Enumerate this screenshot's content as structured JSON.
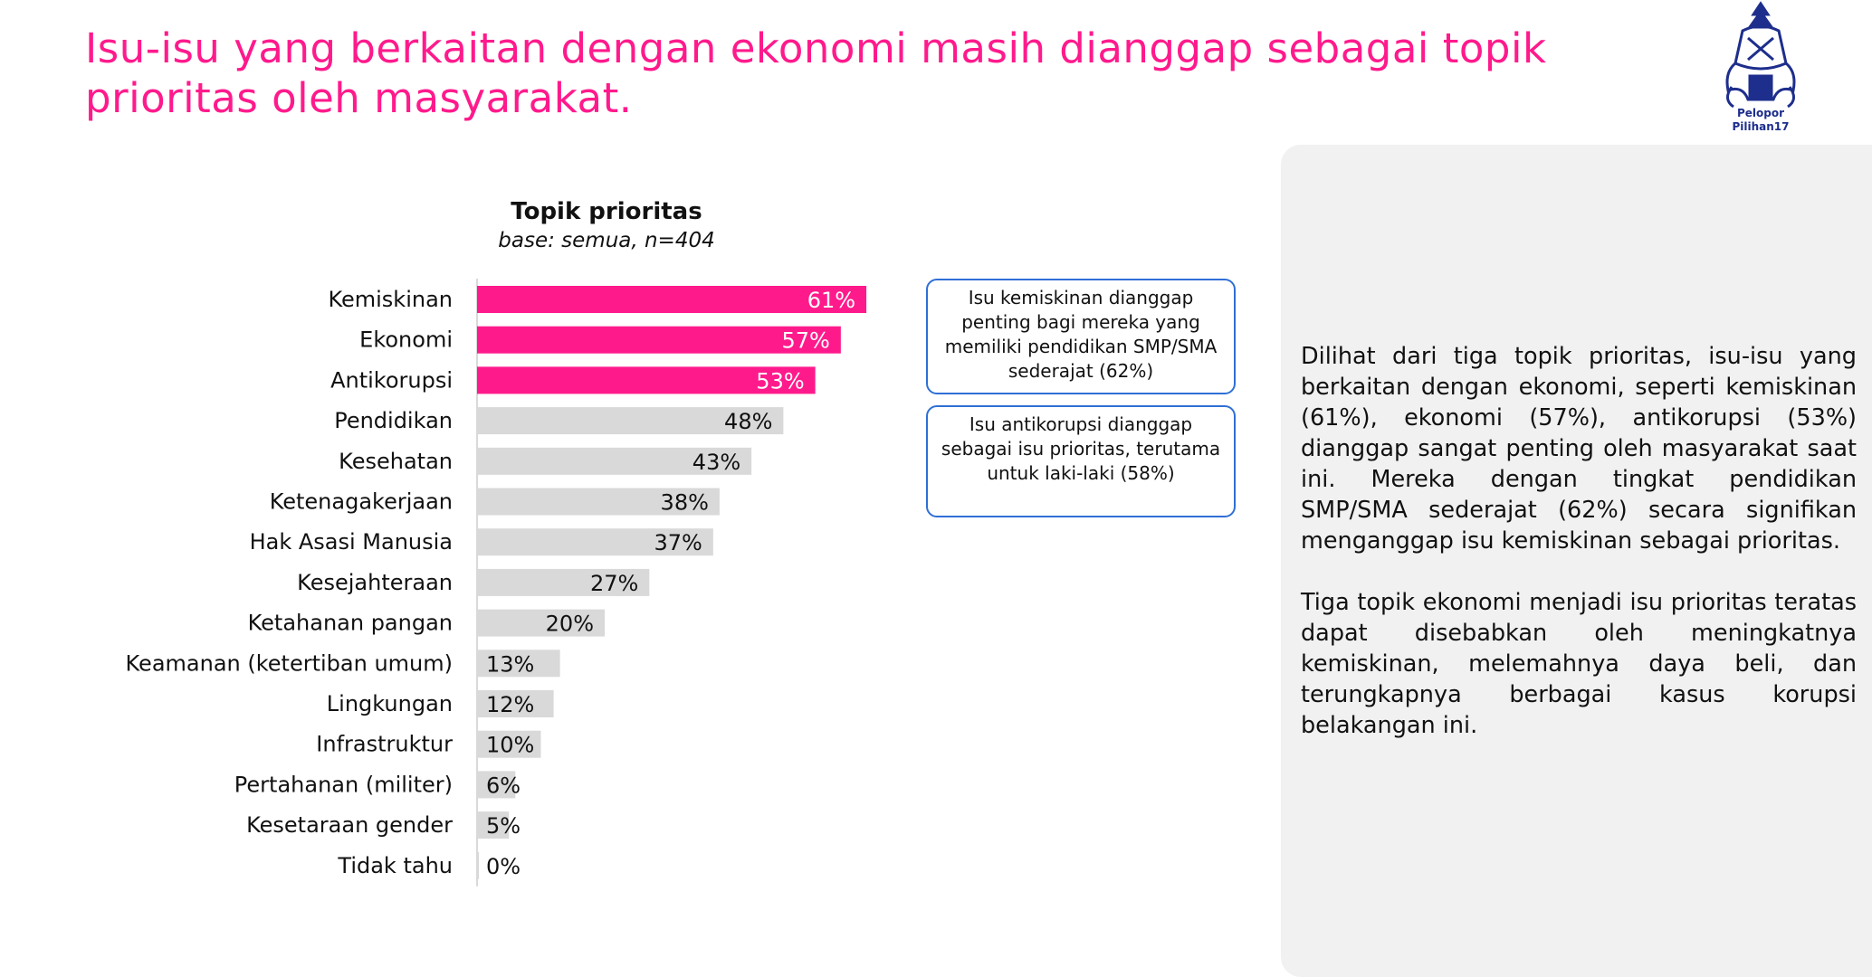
{
  "title": "Isu-isu yang berkaitan dengan ekonomi masih dianggap sebagai topik prioritas oleh masyarakat.",
  "logo": {
    "line1": "Pelopor",
    "line2": "Pilihan17",
    "color": "#1d2e8c"
  },
  "colors": {
    "highlight": "#ff1a8c",
    "default_bar": "#d9d9d9",
    "callout_border": "#2f6fd6"
  },
  "callouts": [
    "Isu kemiskinan dianggap penting bagi mereka yang memiliki pendidikan SMP/SMA sederajat (62%)",
    "Isu antikorupsi dianggap sebagai isu prioritas, terutama untuk laki-laki (58%)"
  ],
  "panel": {
    "paragraph1": "Dilihat dari tiga topik prioritas, isu-isu yang berkaitan dengan ekonomi, seperti kemiskinan (61%), ekonomi (57%), antikorupsi (53%) dianggap sangat penting oleh masyarakat saat ini. Mereka dengan tingkat pendidikan SMP/SMA sederajat (62%) secara signifikan menganggap isu kemiskinan sebagai prioritas.",
    "paragraph2": "Tiga topik ekonomi menjadi isu prioritas teratas dapat disebabkan oleh meningkatnya kemiskinan, melemahnya daya beli, dan terungkapnya berbagai kasus korupsi belakangan ini."
  },
  "chart_data": {
    "type": "bar",
    "orientation": "horizontal",
    "title": "Topik prioritas",
    "subtitle": "base: semua, n=404",
    "categories": [
      "Kemiskinan",
      "Ekonomi",
      "Antikorupsi",
      "Pendidikan",
      "Kesehatan",
      "Ketenagakerjaan",
      "Hak Asasi Manusia",
      "Kesejahteraan",
      "Ketahanan pangan",
      "Keamanan (ketertiban umum)",
      "Lingkungan",
      "Infrastruktur",
      "Pertahanan (militer)",
      "Kesetaraan gender",
      "Tidak tahu"
    ],
    "values": [
      61,
      57,
      53,
      48,
      43,
      38,
      37,
      27,
      20,
      13,
      12,
      10,
      6,
      5,
      0
    ],
    "value_labels": [
      "61%",
      "57%",
      "53%",
      "48%",
      "43%",
      "38%",
      "37%",
      "27%",
      "20%",
      "13%",
      "12%",
      "10%",
      "6%",
      "5%",
      "0%"
    ],
    "highlighted": [
      true,
      true,
      true,
      false,
      false,
      false,
      false,
      false,
      false,
      false,
      false,
      false,
      false,
      false,
      false
    ],
    "xlim": [
      0,
      100
    ]
  }
}
